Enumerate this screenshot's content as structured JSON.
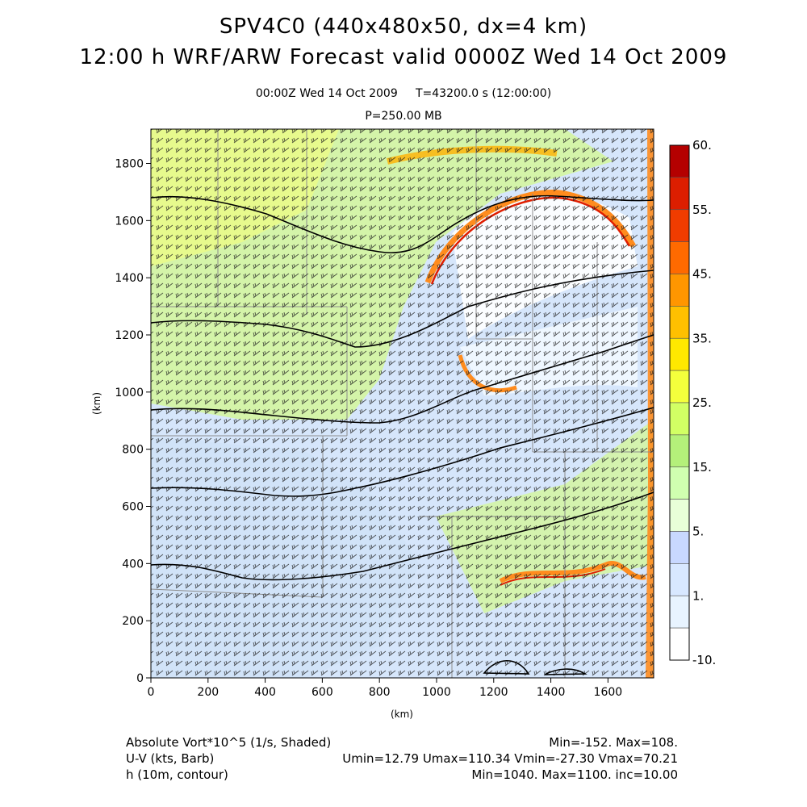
{
  "header": {
    "title_line1": "SPV4C0 (440x480x50, dx=4 km)",
    "title_line2": "12:00 h WRF/ARW Forecast valid 0000Z Wed 14 Oct 2009",
    "time_line": "00:00Z Wed 14 Oct 2009     T=43200.0 s (12:00:00)",
    "level_line": "P=250.00 MB"
  },
  "axes": {
    "x_label": "(km)",
    "y_label": "(km)",
    "x_ticks": [
      "0",
      "200",
      "400",
      "600",
      "800",
      "1000",
      "1200",
      "1400",
      "1600"
    ],
    "y_ticks": [
      "0",
      "200",
      "400",
      "600",
      "800",
      "1000",
      "1200",
      "1400",
      "1600",
      "1800"
    ],
    "x_range": [
      0,
      1760
    ],
    "y_range": [
      0,
      1920
    ]
  },
  "colorbar": {
    "labels": [
      "60.",
      "55.",
      "45.",
      "35.",
      "25.",
      "15.",
      "5.",
      "1.",
      "-10."
    ],
    "colors": [
      "#b40000",
      "#dc1e00",
      "#f03c00",
      "#ff6a00",
      "#ff9600",
      "#ffc000",
      "#ffe800",
      "#f4ff3c",
      "#d2ff64",
      "#b4f07a",
      "#d0ffb0",
      "#e8ffd8",
      "#c8d8ff",
      "#d8e8ff",
      "#e8f4ff",
      "#ffffff"
    ]
  },
  "legend": {
    "row1_left": "Absolute Vort*10^5 (1/s, Shaded)",
    "row1_right": "Min=-152. Max=108.",
    "row2_left": "U-V (kts, Barb)",
    "row2_right": "Umin=12.79 Umax=110.34 Vmin=-27.30 Vmax=70.21",
    "row3_left": "h (10m, contour)",
    "row3_right": "Min=1040. Max=1100. inc=10.00"
  },
  "map_colors": {
    "background_blue": "#d6e6fb",
    "green": "#d4f5a0",
    "yellow": "#f2fa50",
    "orange": "#ff8c1e",
    "red": "#e01e00",
    "border_gray": "#8c8c8c"
  }
}
